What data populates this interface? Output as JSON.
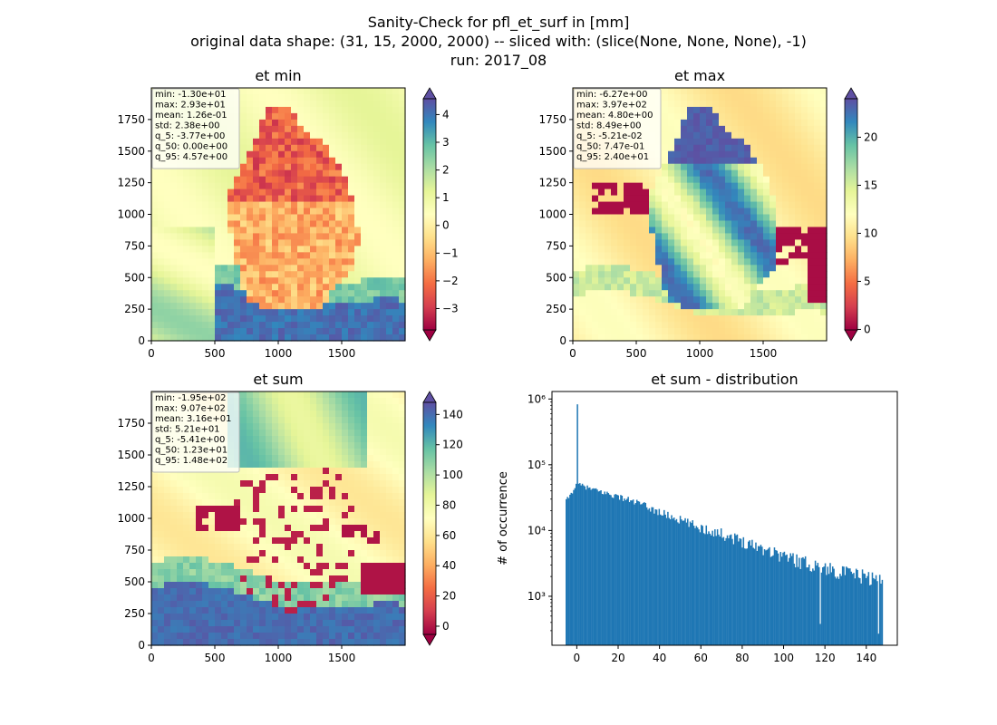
{
  "figure": {
    "title_lines": [
      "Sanity-Check for pfl_et_surf in [mm]",
      "original data shape: (31, 15, 2000, 2000) -- sliced with: (slice(None, None, None), -1)",
      "run: 2017_08"
    ]
  },
  "chart_data": [
    {
      "type": "heatmap",
      "title": "et min",
      "xlim": [
        0,
        2000
      ],
      "ylim": [
        0,
        2000
      ],
      "x_ticks": [
        "0",
        "500",
        "1000",
        "1500"
      ],
      "y_ticks": [
        "0",
        "250",
        "500",
        "750",
        "1000",
        "1250",
        "1500",
        "1750"
      ],
      "colorbar": {
        "colormap": "Spectral",
        "range": [
          -3.77,
          4.57
        ],
        "extend": "both",
        "ticks": [
          "−3",
          "−2",
          "−1",
          "0",
          "1",
          "2",
          "3",
          "4"
        ]
      },
      "stats": [
        "min: -1.30e+01",
        "max: 2.93e+01",
        "mean: 1.26e-01",
        "std: 2.38e+00",
        "q_5: -3.77e+00",
        "q_50: 0.00e+00",
        "q_95: 4.57e+00"
      ]
    },
    {
      "type": "heatmap",
      "title": "et max",
      "xlim": [
        0,
        2000
      ],
      "ylim": [
        0,
        2000
      ],
      "x_ticks": [
        "0",
        "500",
        "1000",
        "1500"
      ],
      "y_ticks": [
        "0",
        "250",
        "500",
        "750",
        "1000",
        "1250",
        "1500",
        "1750"
      ],
      "colorbar": {
        "colormap": "Spectral",
        "range": [
          -0.0521,
          24.0
        ],
        "extend": "both",
        "ticks": [
          "0",
          "5",
          "10",
          "15",
          "20"
        ]
      },
      "stats": [
        "min: -6.27e+00",
        "max: 3.97e+02",
        "mean: 4.80e+00",
        "std: 8.49e+00",
        "q_5: -5.21e-02",
        "q_50: 7.47e-01",
        "q_95: 2.40e+01"
      ]
    },
    {
      "type": "heatmap",
      "title": "et sum",
      "xlim": [
        0,
        2000
      ],
      "ylim": [
        0,
        2000
      ],
      "x_ticks": [
        "0",
        "500",
        "1000",
        "1500"
      ],
      "y_ticks": [
        "0",
        "250",
        "500",
        "750",
        "1000",
        "1250",
        "1500",
        "1750"
      ],
      "colorbar": {
        "colormap": "Spectral",
        "range": [
          -5.41,
          148.0
        ],
        "extend": "both",
        "ticks": [
          "0",
          "20",
          "40",
          "60",
          "80",
          "100",
          "120",
          "140"
        ]
      },
      "stats": [
        "min: -1.95e+02",
        "max: 9.07e+02",
        "mean: 3.16e+01",
        "std: 5.21e+01",
        "q_5: -5.41e+00",
        "q_50: 1.23e+01",
        "q_95: 1.48e+02"
      ]
    },
    {
      "type": "bar",
      "title": "et sum - distribution",
      "xlabel": "",
      "ylabel": "# of occurrence",
      "yscale": "log",
      "xlim": [
        -12,
        155
      ],
      "ylim": [
        180,
        1300000
      ],
      "x_ticks": [
        0,
        20,
        40,
        60,
        80,
        100,
        120,
        140
      ],
      "y_ticks": [
        {
          "value": 1000,
          "label": "10³"
        },
        {
          "value": 10000,
          "label": "10⁴"
        },
        {
          "value": 100000,
          "label": "10⁵"
        },
        {
          "value": 1000000,
          "label": "10⁶"
        }
      ],
      "color": "#1f77b4",
      "bin_range": [
        -5.41,
        148.0
      ],
      "bin_count": 256,
      "spikes": [
        {
          "x": 0,
          "count": 830000
        },
        {
          "x": 118,
          "count": 380
        },
        {
          "x": 146,
          "count": 270
        }
      ],
      "envelope": [
        {
          "x": -5.4,
          "count": 28000
        },
        {
          "x": -3,
          "count": 35000
        },
        {
          "x": 0,
          "count": 52000
        },
        {
          "x": 5,
          "count": 45000
        },
        {
          "x": 10,
          "count": 40000
        },
        {
          "x": 20,
          "count": 33000
        },
        {
          "x": 30,
          "count": 26000
        },
        {
          "x": 40,
          "count": 19000
        },
        {
          "x": 50,
          "count": 14500
        },
        {
          "x": 60,
          "count": 11000
        },
        {
          "x": 70,
          "count": 9000
        },
        {
          "x": 80,
          "count": 7000
        },
        {
          "x": 90,
          "count": 5500
        },
        {
          "x": 100,
          "count": 4200
        },
        {
          "x": 110,
          "count": 3300
        },
        {
          "x": 120,
          "count": 2700
        },
        {
          "x": 130,
          "count": 2300
        },
        {
          "x": 140,
          "count": 2000
        },
        {
          "x": 148,
          "count": 1700
        }
      ]
    }
  ]
}
